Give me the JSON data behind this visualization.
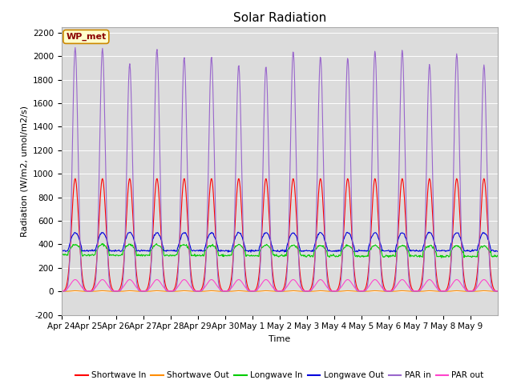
{
  "title": "Solar Radiation",
  "ylabel": "Radiation (W/m2, umol/m2/s)",
  "xlabel": "Time",
  "ylim": [
    -200,
    2250
  ],
  "yticks": [
    -200,
    0,
    200,
    400,
    600,
    800,
    1000,
    1200,
    1400,
    1600,
    1800,
    2000,
    2200
  ],
  "xtick_labels": [
    "Apr 24",
    "Apr 25",
    "Apr 26",
    "Apr 27",
    "Apr 28",
    "Apr 29",
    "Apr 30",
    "May 1",
    "May 2",
    "May 3",
    "May 4",
    "May 5",
    "May 6",
    "May 7",
    "May 8",
    "May 9"
  ],
  "legend_labels": [
    "Shortwave In",
    "Shortwave Out",
    "Longwave In",
    "Longwave Out",
    "PAR in",
    "PAR out"
  ],
  "legend_colors": [
    "#ff0000",
    "#ff8c00",
    "#00cc00",
    "#0000dd",
    "#9966cc",
    "#ff44cc"
  ],
  "annotation_text": "WP_met",
  "annotation_bg": "#ffffcc",
  "annotation_border": "#cc8800",
  "fig_bg_color": "#ffffff",
  "plot_bg_color": "#dcdcdc",
  "n_days": 16,
  "title_fontsize": 11,
  "label_fontsize": 8,
  "tick_fontsize": 7.5
}
